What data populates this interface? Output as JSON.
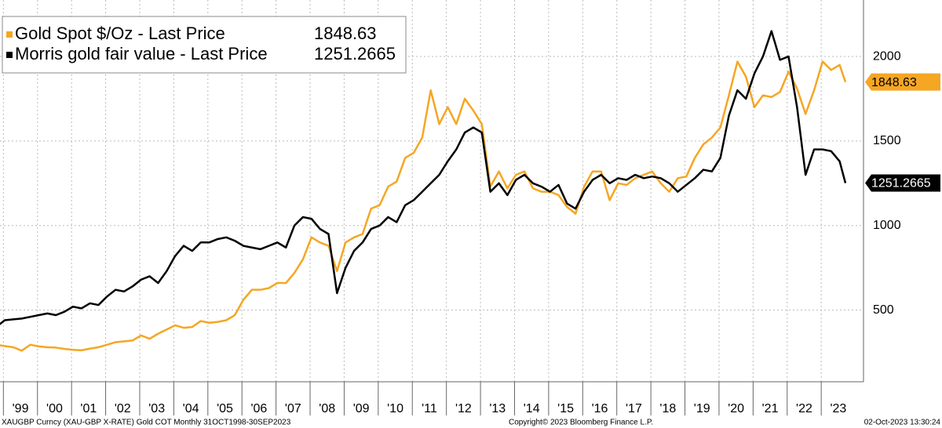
{
  "chart_data": {
    "type": "line",
    "legend": "top-left",
    "grid": true,
    "footer": {
      "left": "XAUGBP Curncy (XAU-GBP X-RATE) Gold COT  Monthly 31OCT1998-30SEP2023",
      "center": "Copyright© 2023 Bloomberg Finance L.P.",
      "right": "02-Oct-2023 13:30:24"
    },
    "x": [
      1998.79,
      1999.04,
      1999.29,
      1999.54,
      1999.79,
      2000.04,
      2000.29,
      2000.54,
      2000.79,
      2001.04,
      2001.29,
      2001.54,
      2001.79,
      2002.04,
      2002.29,
      2002.54,
      2002.79,
      2003.04,
      2003.29,
      2003.54,
      2003.79,
      2004.04,
      2004.29,
      2004.54,
      2004.79,
      2005.04,
      2005.29,
      2005.54,
      2005.79,
      2006.04,
      2006.29,
      2006.54,
      2006.79,
      2007.04,
      2007.29,
      2007.54,
      2007.79,
      2008.04,
      2008.29,
      2008.54,
      2008.79,
      2009.04,
      2009.29,
      2009.54,
      2009.79,
      2010.04,
      2010.29,
      2010.54,
      2010.79,
      2011.04,
      2011.29,
      2011.54,
      2011.79,
      2012.04,
      2012.29,
      2012.54,
      2012.79,
      2013.04,
      2013.29,
      2013.54,
      2013.79,
      2014.04,
      2014.29,
      2014.54,
      2014.79,
      2015.04,
      2015.29,
      2015.54,
      2015.79,
      2016.04,
      2016.29,
      2016.54,
      2016.79,
      2017.04,
      2017.29,
      2017.54,
      2017.79,
      2018.04,
      2018.29,
      2018.54,
      2018.79,
      2019.04,
      2019.29,
      2019.54,
      2019.79,
      2020.04,
      2020.29,
      2020.54,
      2020.79,
      2021.04,
      2021.29,
      2021.54,
      2021.79,
      2022.04,
      2022.29,
      2022.54,
      2022.79,
      2023.04,
      2023.29,
      2023.54,
      2023.71
    ],
    "series": [
      {
        "name": "Gold Spot $/Oz - Last Price",
        "color": "#f5a623",
        "values": [
          295,
          287,
          280,
          260,
          295,
          285,
          280,
          278,
          270,
          265,
          262,
          272,
          280,
          295,
          310,
          315,
          320,
          350,
          330,
          360,
          385,
          410,
          395,
          400,
          435,
          425,
          430,
          440,
          470,
          560,
          620,
          620,
          630,
          660,
          660,
          720,
          800,
          930,
          900,
          880,
          730,
          900,
          930,
          950,
          1100,
          1120,
          1230,
          1260,
          1400,
          1430,
          1520,
          1800,
          1600,
          1700,
          1600,
          1750,
          1680,
          1600,
          1230,
          1320,
          1220,
          1300,
          1320,
          1220,
          1200,
          1200,
          1180,
          1110,
          1070,
          1230,
          1320,
          1320,
          1150,
          1250,
          1240,
          1280,
          1300,
          1320,
          1250,
          1200,
          1280,
          1290,
          1400,
          1480,
          1520,
          1580,
          1770,
          1970,
          1880,
          1700,
          1770,
          1760,
          1790,
          1910,
          1810,
          1660,
          1800,
          1970,
          1920,
          1950,
          1848.63
        ]
      },
      {
        "name": "Morris gold fair value - Last Price",
        "color": "#000000",
        "values": [
          400,
          440,
          445,
          450,
          460,
          470,
          480,
          470,
          490,
          520,
          510,
          540,
          530,
          580,
          620,
          610,
          640,
          680,
          700,
          660,
          730,
          820,
          880,
          850,
          900,
          900,
          920,
          930,
          910,
          880,
          870,
          860,
          880,
          900,
          870,
          1000,
          1050,
          1040,
          980,
          950,
          600,
          750,
          850,
          900,
          980,
          1000,
          1050,
          1020,
          1120,
          1150,
          1200,
          1250,
          1300,
          1380,
          1450,
          1550,
          1580,
          1550,
          1200,
          1250,
          1180,
          1270,
          1300,
          1250,
          1230,
          1200,
          1240,
          1130,
          1100,
          1200,
          1270,
          1300,
          1250,
          1280,
          1270,
          1300,
          1280,
          1290,
          1280,
          1250,
          1200,
          1240,
          1280,
          1330,
          1320,
          1400,
          1650,
          1800,
          1750,
          1900,
          2000,
          2150,
          1980,
          2000,
          1700,
          1300,
          1450,
          1450,
          1440,
          1380,
          1251.2665
        ]
      }
    ],
    "xlim": [
      1998.9,
      2024.24
    ],
    "xticks": [
      {
        "value": 1999.5,
        "label": "'99"
      },
      {
        "value": 2000.5,
        "label": "'00"
      },
      {
        "value": 2001.5,
        "label": "'01"
      },
      {
        "value": 2002.5,
        "label": "'02"
      },
      {
        "value": 2003.5,
        "label": "'03"
      },
      {
        "value": 2004.5,
        "label": "'04"
      },
      {
        "value": 2005.5,
        "label": "'05"
      },
      {
        "value": 2006.5,
        "label": "'06"
      },
      {
        "value": 2007.5,
        "label": "'07"
      },
      {
        "value": 2008.5,
        "label": "'08"
      },
      {
        "value": 2009.5,
        "label": "'09"
      },
      {
        "value": 2010.5,
        "label": "'10"
      },
      {
        "value": 2011.5,
        "label": "'11"
      },
      {
        "value": 2012.5,
        "label": "'12"
      },
      {
        "value": 2013.5,
        "label": "'13"
      },
      {
        "value": 2014.5,
        "label": "'14"
      },
      {
        "value": 2015.5,
        "label": "'15"
      },
      {
        "value": 2016.5,
        "label": "'16"
      },
      {
        "value": 2017.5,
        "label": "'17"
      },
      {
        "value": 2018.5,
        "label": "'18"
      },
      {
        "value": 2019.5,
        "label": "'19"
      },
      {
        "value": 2020.5,
        "label": "'20"
      },
      {
        "value": 2021.5,
        "label": "'21"
      },
      {
        "value": 2022.5,
        "label": "'22"
      },
      {
        "value": 2023.5,
        "label": "'23"
      }
    ],
    "xgrid": [
      1999,
      2000,
      2001,
      2002,
      2003,
      2004,
      2005,
      2006,
      2007,
      2008,
      2009,
      2010,
      2011,
      2012,
      2013,
      2014,
      2015,
      2016,
      2017,
      2018,
      2019,
      2020,
      2021,
      2022,
      2023
    ],
    "ylim": [
      76,
      2334
    ],
    "yticks": [
      500,
      1000,
      1500,
      2000
    ]
  }
}
